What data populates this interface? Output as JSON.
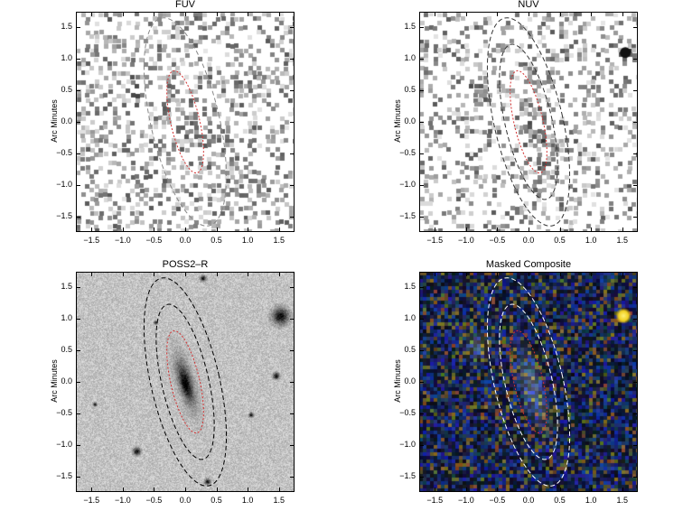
{
  "panels": [
    {
      "id": "fuv",
      "title": "FUV",
      "ylabel": "Arc Minutes",
      "style": "gray-noise-uv"
    },
    {
      "id": "nuv",
      "title": "NUV",
      "ylabel": "Arc Minutes",
      "style": "gray-noise-uv2"
    },
    {
      "id": "poss",
      "title": "POSS2–R",
      "ylabel": "Arc Minutes",
      "style": "optical"
    },
    {
      "id": "comp",
      "title": "Masked Composite",
      "ylabel": "Arc Minutes",
      "style": "color"
    }
  ],
  "axes": {
    "xticks": [
      "−1.5",
      "−1.0",
      "−0.5",
      "0.0",
      "0.5",
      "1.0",
      "1.5"
    ],
    "yticks": [
      "1.5",
      "1.0",
      "0.5",
      "0.0",
      "−0.5",
      "−1.0",
      "−1.5"
    ],
    "range": [
      -1.75,
      1.75
    ]
  },
  "colors": {
    "inner_ellipse": "#d23030",
    "outer_ellipse_dark": "#000000",
    "outer_ellipse_light": "#ffffff"
  }
}
